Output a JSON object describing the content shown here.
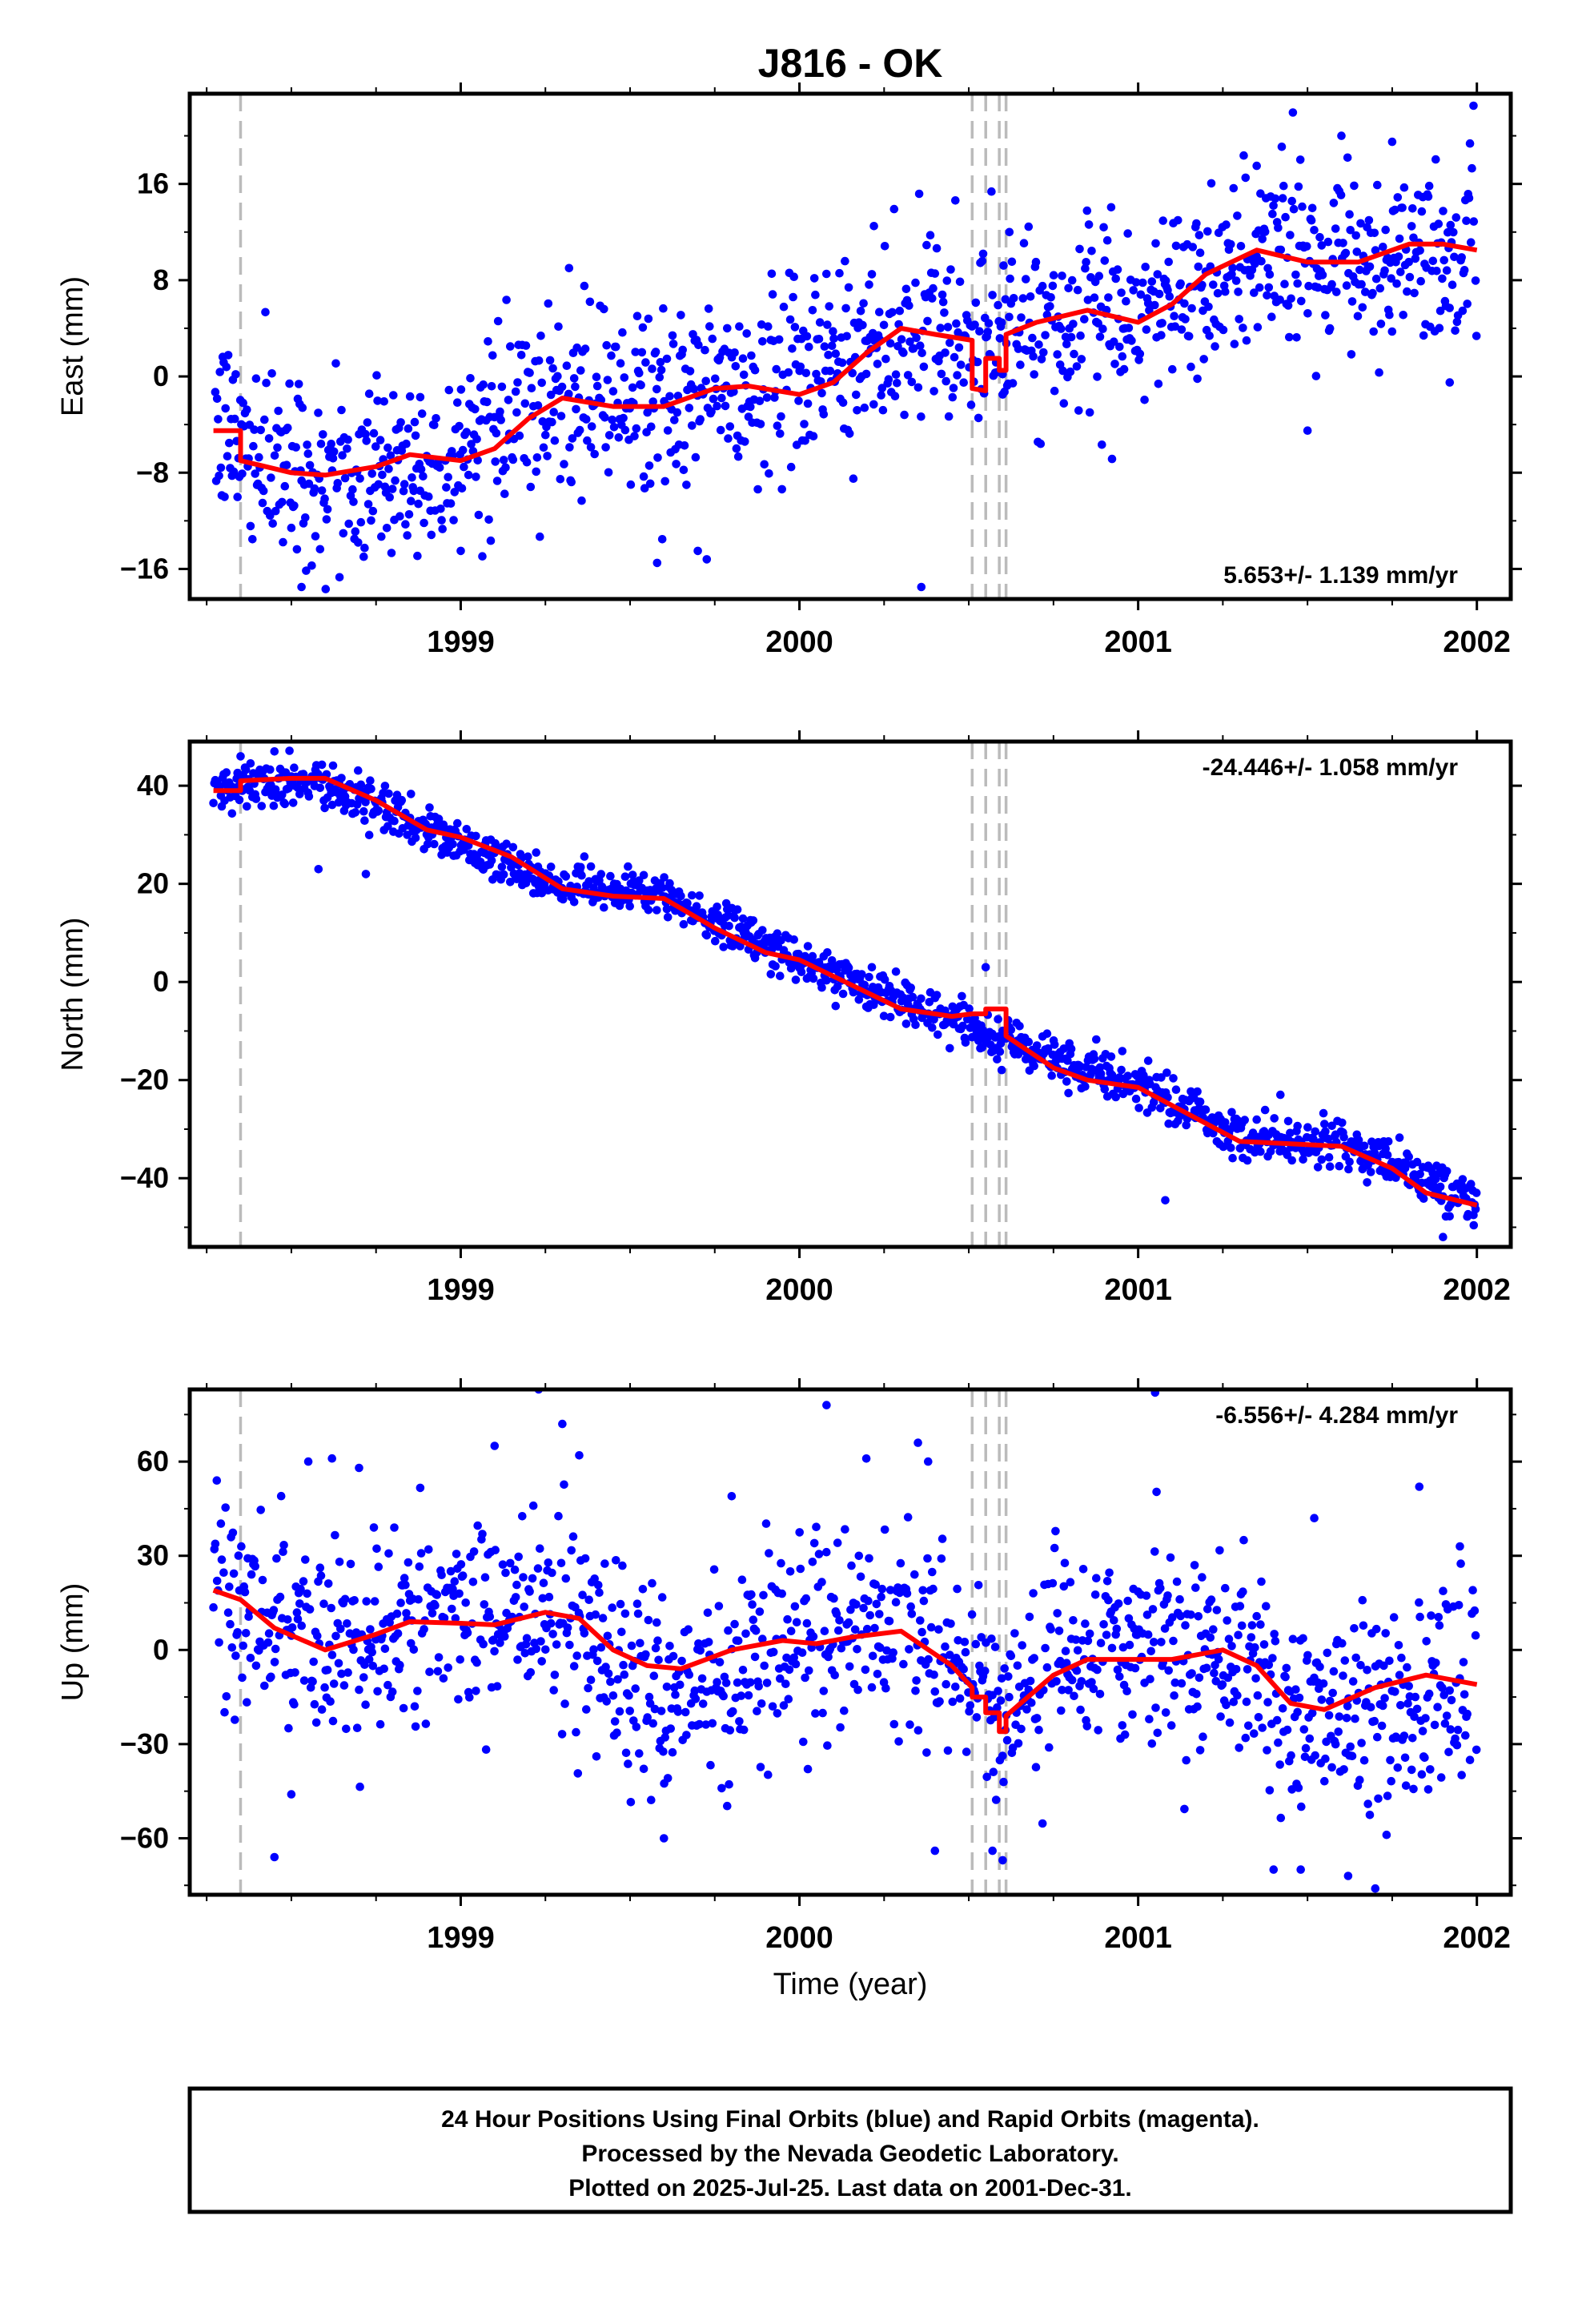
{
  "colors": {
    "final_orbits": "#0000ff",
    "model_fit": "#ff0000",
    "event_lines": "#bbbbbb",
    "frame": "#000000"
  },
  "chart_data": {
    "type": "scatter",
    "title": "J816 - OK",
    "xlabel": "Time (year)",
    "x_ticks": [
      1999,
      2000,
      2001,
      2002
    ],
    "xlim": [
      1998.2,
      2002.1
    ],
    "event_lines": [
      1998.35,
      2000.51,
      2000.55,
      2000.59,
      2000.61
    ],
    "panels": [
      {
        "name": "east",
        "ylabel": "East (mm)",
        "ylim": [
          -18.5,
          23.5
        ],
        "yticks": [
          -16,
          -8,
          0,
          8,
          16
        ],
        "rate_text": "5.653+/- 1.139 mm/yr",
        "rate_position": "bottom-right",
        "fit": [
          [
            1998.27,
            -4.5
          ],
          [
            1998.35,
            -4.5
          ],
          [
            1998.35,
            -7
          ],
          [
            1998.5,
            -8
          ],
          [
            1998.6,
            -8.2
          ],
          [
            1998.75,
            -7.5
          ],
          [
            1998.85,
            -6.5
          ],
          [
            1999.0,
            -7
          ],
          [
            1999.1,
            -6
          ],
          [
            1999.2,
            -3.5
          ],
          [
            1999.3,
            -1.8
          ],
          [
            1999.45,
            -2.5
          ],
          [
            1999.6,
            -2.5
          ],
          [
            1999.75,
            -1
          ],
          [
            1999.85,
            -0.8
          ],
          [
            2000.0,
            -1.5
          ],
          [
            2000.1,
            -0.5
          ],
          [
            2000.2,
            2
          ],
          [
            2000.3,
            4
          ],
          [
            2000.4,
            3.5
          ],
          [
            2000.51,
            3
          ],
          [
            2000.51,
            -1
          ],
          [
            2000.55,
            -1.2
          ],
          [
            2000.55,
            1.5
          ],
          [
            2000.59,
            1.5
          ],
          [
            2000.59,
            0.5
          ],
          [
            2000.61,
            0.5
          ],
          [
            2000.61,
            3.5
          ],
          [
            2000.7,
            4.5
          ],
          [
            2000.85,
            5.5
          ],
          [
            2001.0,
            4.5
          ],
          [
            2001.1,
            6
          ],
          [
            2001.2,
            8.5
          ],
          [
            2001.35,
            10.5
          ],
          [
            2001.5,
            9.5
          ],
          [
            2001.65,
            9.5
          ],
          [
            2001.8,
            11
          ],
          [
            2001.9,
            11
          ],
          [
            2002.0,
            10.5
          ]
        ],
        "trend": [
          [
            1998.27,
            -4.3
          ],
          [
            1998.6,
            -7.9
          ],
          [
            1998.9,
            -7.1
          ],
          [
            1999.3,
            -2.3
          ],
          [
            1999.8,
            -1.3
          ],
          [
            2000.3,
            3.7
          ],
          [
            2000.7,
            4.1
          ],
          [
            2001.0,
            4.7
          ],
          [
            2001.4,
            10.3
          ],
          [
            2001.7,
            9.6
          ],
          [
            2002.0,
            10.7
          ]
        ],
        "noise": 3.8,
        "outliers": [
          [
            1998.53,
            -17.5
          ],
          [
            1998.88,
            -9.5
          ],
          [
            1999.0,
            -14.5
          ],
          [
            1999.32,
            9
          ],
          [
            1999.58,
            -15.5
          ],
          [
            1999.7,
            -14.5
          ],
          [
            2000.22,
            12.5
          ],
          [
            2000.36,
            -17.5
          ],
          [
            2000.6,
            -1.5
          ],
          [
            2000.62,
            12
          ],
          [
            2001.35,
            17.5
          ],
          [
            2001.5,
            -4.5
          ],
          [
            2001.6,
            20
          ],
          [
            2001.75,
            19.5
          ],
          [
            2001.92,
            -0.5
          ],
          [
            2001.99,
            22.5
          ]
        ]
      },
      {
        "name": "north",
        "ylabel": "North (mm)",
        "ylim": [
          -54,
          49
        ],
        "yticks": [
          -40,
          -20,
          0,
          20,
          40
        ],
        "rate_text": "-24.446+/- 1.058 mm/yr",
        "rate_position": "top-right",
        "fit": [
          [
            1998.27,
            39
          ],
          [
            1998.35,
            39
          ],
          [
            1998.35,
            41
          ],
          [
            1998.5,
            41.5
          ],
          [
            1998.6,
            41.5
          ],
          [
            1998.75,
            37
          ],
          [
            1998.9,
            31
          ],
          [
            1999.0,
            29.5
          ],
          [
            1999.15,
            25.5
          ],
          [
            1999.3,
            19
          ],
          [
            1999.45,
            17.5
          ],
          [
            1999.6,
            17
          ],
          [
            1999.75,
            11
          ],
          [
            1999.9,
            6
          ],
          [
            2000.0,
            4.5
          ],
          [
            2000.15,
            -0.5
          ],
          [
            2000.3,
            -5.5
          ],
          [
            2000.45,
            -7
          ],
          [
            2000.51,
            -6.5
          ],
          [
            2000.55,
            -6.5
          ],
          [
            2000.55,
            -5.5
          ],
          [
            2000.61,
            -5.5
          ],
          [
            2000.61,
            -11
          ],
          [
            2000.75,
            -17.5
          ],
          [
            2000.85,
            -20
          ],
          [
            2001.0,
            -21.5
          ],
          [
            2001.15,
            -27
          ],
          [
            2001.3,
            -32.5
          ],
          [
            2001.45,
            -33
          ],
          [
            2001.6,
            -33.5
          ],
          [
            2001.75,
            -38
          ],
          [
            2001.85,
            -43
          ],
          [
            2002.0,
            -45.5
          ]
        ],
        "trend": [
          [
            1998.27,
            39
          ],
          [
            1998.6,
            40.8
          ],
          [
            1998.9,
            31
          ],
          [
            1999.3,
            19.5
          ],
          [
            1999.6,
            17.5
          ],
          [
            2000.0,
            4.5
          ],
          [
            2000.4,
            -6.5
          ],
          [
            2000.7,
            -14
          ],
          [
            2001.0,
            -21
          ],
          [
            2001.3,
            -32
          ],
          [
            2001.6,
            -33
          ],
          [
            2002.0,
            -45
          ]
        ],
        "noise": 2.3,
        "outliers": [
          [
            1998.35,
            46
          ],
          [
            1998.45,
            47
          ],
          [
            1998.58,
            23
          ],
          [
            1998.72,
            22
          ],
          [
            2000.55,
            3
          ],
          [
            2000.65,
            -9
          ],
          [
            2001.08,
            -44.5
          ],
          [
            2001.42,
            -23
          ],
          [
            2001.9,
            -52
          ],
          [
            2001.99,
            -47.5
          ]
        ]
      },
      {
        "name": "up",
        "ylabel": "Up (mm)",
        "ylim": [
          -78,
          83
        ],
        "yticks": [
          -60,
          -30,
          0,
          30,
          60
        ],
        "rate_text": "-6.556+/- 4.284 mm/yr",
        "rate_position": "top-right",
        "fit": [
          [
            1998.27,
            19
          ],
          [
            1998.35,
            16
          ],
          [
            1998.45,
            7
          ],
          [
            1998.6,
            0
          ],
          [
            1998.75,
            5
          ],
          [
            1998.85,
            9
          ],
          [
            1999.0,
            8.5
          ],
          [
            1999.1,
            8
          ],
          [
            1999.25,
            12
          ],
          [
            1999.35,
            10
          ],
          [
            1999.45,
            0
          ],
          [
            1999.55,
            -5
          ],
          [
            1999.65,
            -6
          ],
          [
            1999.8,
            0
          ],
          [
            1999.95,
            3
          ],
          [
            2000.05,
            2
          ],
          [
            2000.15,
            4
          ],
          [
            2000.3,
            6
          ],
          [
            2000.45,
            -5
          ],
          [
            2000.51,
            -12
          ],
          [
            2000.51,
            -15
          ],
          [
            2000.55,
            -15
          ],
          [
            2000.55,
            -20
          ],
          [
            2000.59,
            -20
          ],
          [
            2000.59,
            -26
          ],
          [
            2000.61,
            -26
          ],
          [
            2000.61,
            -21
          ],
          [
            2000.75,
            -8
          ],
          [
            2000.85,
            -3
          ],
          [
            2001.0,
            -3
          ],
          [
            2001.1,
            -3
          ],
          [
            2001.25,
            0
          ],
          [
            2001.35,
            -5
          ],
          [
            2001.45,
            -17
          ],
          [
            2001.55,
            -19
          ],
          [
            2001.7,
            -12
          ],
          [
            2001.85,
            -8
          ],
          [
            2002.0,
            -11
          ]
        ],
        "trend": [
          [
            1998.27,
            17
          ],
          [
            1998.6,
            2
          ],
          [
            1998.8,
            10
          ],
          [
            1999.2,
            14
          ],
          [
            1999.3,
            15
          ],
          [
            1999.55,
            -16
          ],
          [
            1999.7,
            -18
          ],
          [
            1999.9,
            2
          ],
          [
            2000.3,
            8
          ],
          [
            2000.5,
            -10
          ],
          [
            2000.6,
            -20
          ],
          [
            2000.8,
            0
          ],
          [
            2001.2,
            0
          ],
          [
            2001.5,
            -22
          ],
          [
            2001.8,
            -18
          ],
          [
            2002.0,
            -5
          ]
        ],
        "noise": 16,
        "outliers": [
          [
            1998.28,
            54
          ],
          [
            1998.45,
            -66
          ],
          [
            1998.5,
            -46
          ],
          [
            1998.55,
            60
          ],
          [
            1998.62,
            61
          ],
          [
            1998.7,
            58
          ],
          [
            1999.1,
            65
          ],
          [
            1999.23,
            83
          ],
          [
            1999.3,
            72
          ],
          [
            1999.35,
            62
          ],
          [
            1999.6,
            -60
          ],
          [
            1999.8,
            49
          ],
          [
            2000.08,
            78
          ],
          [
            2000.35,
            66
          ],
          [
            2000.38,
            60
          ],
          [
            2000.4,
            -64
          ],
          [
            2000.57,
            -64
          ],
          [
            2000.6,
            -67
          ],
          [
            2001.05,
            82
          ],
          [
            2001.4,
            -70
          ],
          [
            2001.48,
            -70
          ],
          [
            2001.52,
            42
          ],
          [
            2001.62,
            -72
          ],
          [
            2001.7,
            -76
          ],
          [
            2001.83,
            52
          ],
          [
            2001.95,
            33
          ]
        ]
      }
    ]
  },
  "caption": {
    "line1": "24 Hour Positions Using Final Orbits (blue) and Rapid Orbits (magenta).",
    "line2": "Processed by the Nevada Geodetic Laboratory.",
    "line3": "Plotted on 2025-Jul-25. Last data on 2001-Dec-31."
  }
}
